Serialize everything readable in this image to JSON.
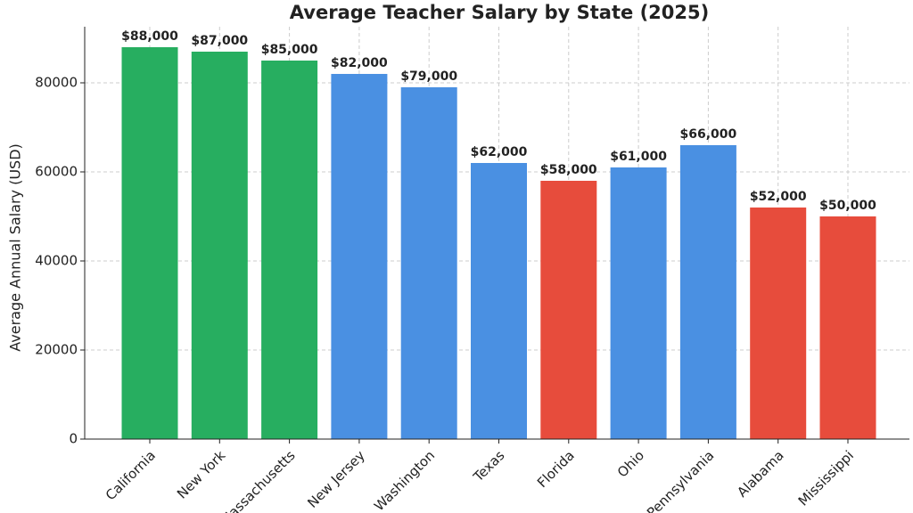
{
  "chart_data": {
    "type": "bar",
    "title": "Average Teacher Salary by State (2025)",
    "y_label": "Average Annual Salary (USD)",
    "categories": [
      "California",
      "New York",
      "Massachusetts",
      "New Jersey",
      "Washington",
      "Texas",
      "Florida",
      "Ohio",
      "Pennsylvania",
      "Alabama",
      "Mississippi"
    ],
    "values": [
      88000,
      87000,
      85000,
      82000,
      79000,
      62000,
      58000,
      61000,
      66000,
      52000,
      50000
    ],
    "value_labels": [
      "$88,000",
      "$87,000",
      "$85,000",
      "$82,000",
      "$79,000",
      "$62,000",
      "$58,000",
      "$61,000",
      "$66,000",
      "$52,000",
      "$50,000"
    ],
    "colors": [
      "#27ae60",
      "#27ae60",
      "#27ae60",
      "#4a90e2",
      "#4a90e2",
      "#4a90e2",
      "#e74c3c",
      "#4a90e2",
      "#4a90e2",
      "#e74c3c",
      "#e74c3c"
    ],
    "ylim": [
      0,
      92600
    ],
    "yticks": [
      0,
      20000,
      40000,
      60000,
      80000
    ],
    "grid": true
  }
}
